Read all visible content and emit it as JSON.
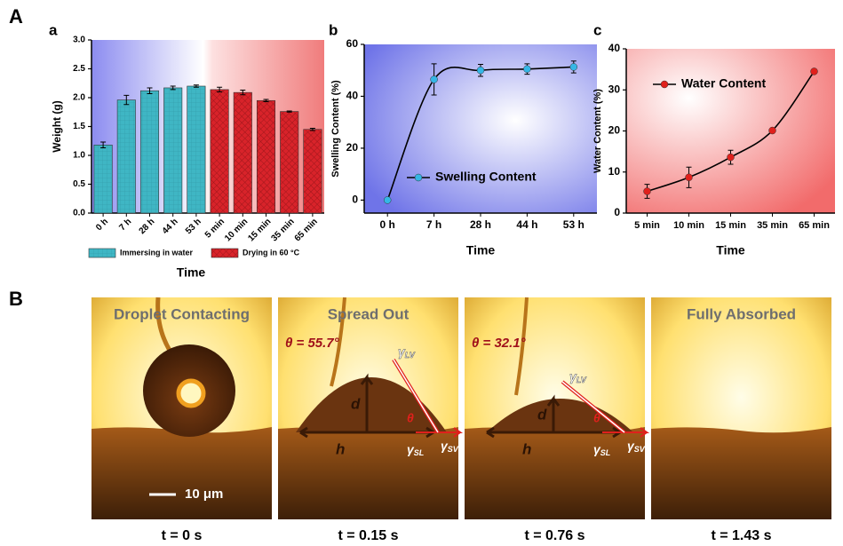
{
  "chart_data": [
    {
      "type": "bar",
      "title": "a",
      "xlabel": "Time",
      "ylabel": "Weight (g)",
      "categories": [
        "0 h",
        "7 h",
        "28 h",
        "44 h",
        "53 h",
        "5 min",
        "10 min",
        "15 min",
        "35 min",
        "65 min"
      ],
      "series": [
        {
          "name": "Immersing in water",
          "color": "#3fb6c4",
          "values": [
            1.18,
            1.96,
            2.12,
            2.17,
            2.2,
            null,
            null,
            null,
            null,
            null
          ],
          "errors": [
            0.05,
            0.08,
            0.05,
            0.03,
            0.02,
            null,
            null,
            null,
            null,
            null
          ]
        },
        {
          "name": "Drying in 60 °C",
          "color": "#d8232a",
          "values": [
            null,
            null,
            null,
            null,
            null,
            2.14,
            2.09,
            1.95,
            1.76,
            1.45
          ],
          "errors": [
            null,
            null,
            null,
            null,
            null,
            0.04,
            0.04,
            0.02,
            0.01,
            0.02
          ]
        }
      ],
      "ylim": [
        0,
        3.0
      ],
      "yticks": [
        {
          "value": 0,
          "label": "0.0"
        },
        {
          "value": 0.5,
          "label": "0.5"
        },
        {
          "value": 1,
          "label": "1.0"
        },
        {
          "value": 1.5,
          "label": "1.5"
        },
        {
          "value": 2,
          "label": "2.0"
        },
        {
          "value": 2.5,
          "label": "2.5"
        },
        {
          "value": 3,
          "label": "3.0"
        }
      ],
      "legend": "bottom"
    },
    {
      "type": "line",
      "title": "b",
      "xlabel": "Time",
      "ylabel": "Swelling Content (%)",
      "categories": [
        "0 h",
        "7 h",
        "28 h",
        "44 h",
        "53 h"
      ],
      "series": [
        {
          "name": "Swelling Content",
          "color": "#35b6e6",
          "values": [
            0,
            46.5,
            50,
            50.5,
            51.3
          ],
          "errors": [
            0,
            6,
            2.3,
            2,
            2.3
          ]
        }
      ],
      "ylim": [
        -5,
        60
      ],
      "yticks": [
        0,
        20,
        40,
        60
      ],
      "legend": "lower right"
    },
    {
      "type": "line",
      "title": "c",
      "xlabel": "Time",
      "ylabel": "Water Content (%)",
      "categories": [
        "5 min",
        "10 min",
        "15 min",
        "35 min",
        "65 min"
      ],
      "series": [
        {
          "name": "Water Content",
          "color": "#e0201c",
          "values": [
            5.3,
            8.7,
            13.6,
            20.1,
            34.5
          ],
          "errors": [
            1.7,
            2.5,
            1.7,
            0.3,
            0.5
          ]
        }
      ],
      "ylim": [
        0,
        40
      ],
      "yticks": [
        0,
        10,
        20,
        30,
        40
      ],
      "legend": "upper left"
    }
  ],
  "figure": {
    "panel_a": "A",
    "panel_b": "B",
    "photos": [
      {
        "title": "Droplet Contacting",
        "time": "t = 0 s",
        "scale": "10 μm"
      },
      {
        "title": "Spread Out",
        "time": "t = 0.15 s",
        "angle": "θ = 55.7°",
        "d": "d",
        "h": "h",
        "theta": "θ",
        "forces": [
          {
            "symbol": "γ",
            "sub": "LV"
          },
          {
            "symbol": "γ",
            "sub": "SL"
          },
          {
            "symbol": "γ",
            "sub": "SV"
          }
        ]
      },
      {
        "time": "t = 0.76 s",
        "angle": "θ = 32.1°",
        "d": "d",
        "h": "h",
        "theta": "θ",
        "forces": [
          {
            "symbol": "γ",
            "sub": "LV"
          },
          {
            "symbol": "γ",
            "sub": "SL"
          },
          {
            "symbol": "γ",
            "sub": "SV"
          }
        ]
      },
      {
        "title": "Fully Absorbed",
        "time": "t = 1.43 s"
      }
    ]
  }
}
